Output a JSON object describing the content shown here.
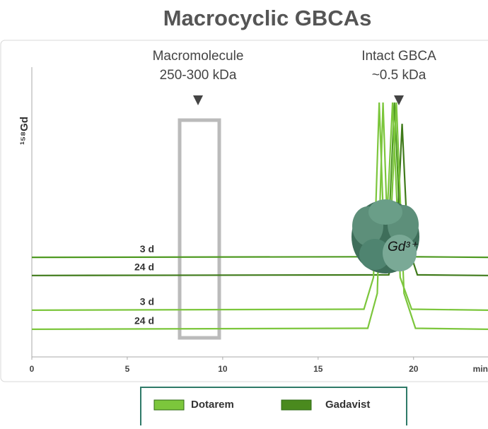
{
  "chart_data": {
    "type": "line",
    "title": "Macrocyclic GBCAs",
    "y_label": "¹⁵⁸Gd",
    "x_label": "min",
    "xlim": [
      0,
      23.9
    ],
    "xticks": [
      0,
      5,
      10,
      15,
      20
    ],
    "ylim": [
      0,
      100
    ],
    "annotations": [
      {
        "lines": [
          "Macromolecule",
          "250-300 kDa"
        ]
      },
      {
        "lines": [
          "Intact GBCA",
          "~0.5 kDa"
        ]
      }
    ],
    "molecule_label": "Gd³⁺",
    "legend": [
      {
        "name": "Dotarem",
        "color": "#7cc63c"
      },
      {
        "name": "Gadavist",
        "color": "#4a8a1e"
      }
    ],
    "series": [
      {
        "label": "3 d",
        "color": "#4f9a22",
        "x": [
          0,
          18.3,
          18.7,
          19.0,
          19.3,
          19.8,
          23.9
        ],
        "values": [
          31.3,
          31.5,
          40,
          80,
          40,
          31.5,
          31.3
        ]
      },
      {
        "label": "24 d",
        "color": "#3f7a1a",
        "x": [
          0,
          18.7,
          19.1,
          19.4,
          19.7,
          20.2,
          23.9
        ],
        "values": [
          25.6,
          25.8,
          35,
          73.3,
          35,
          25.8,
          25.6
        ]
      },
      {
        "label": "3 d",
        "color": "#7cc63c",
        "x": [
          0,
          17.4,
          17.9,
          18.2,
          18.5,
          18.9,
          19.3,
          19.9,
          23.9
        ],
        "values": [
          14.7,
          15,
          25,
          80,
          30,
          80,
          25,
          15,
          14.7
        ]
      },
      {
        "label": "24 d",
        "color": "#7cc63c",
        "x": [
          0,
          17.6,
          18.1,
          18.4,
          18.7,
          19.1,
          19.5,
          20.1,
          23.9
        ],
        "values": [
          8.7,
          9,
          20,
          80,
          28,
          80,
          20,
          9,
          8.7
        ]
      }
    ]
  }
}
